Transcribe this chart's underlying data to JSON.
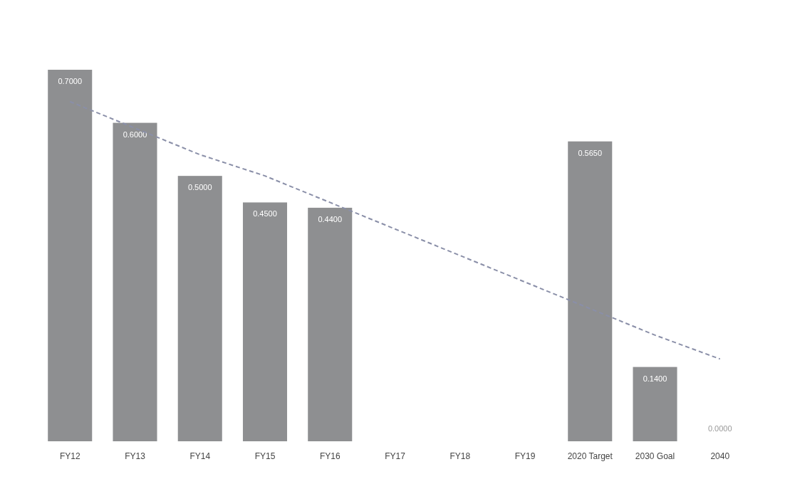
{
  "chart_data": {
    "type": "bar",
    "categories": [
      "FY12",
      "FY13",
      "FY14",
      "FY15",
      "FY16",
      "FY17",
      "FY18",
      "FY19",
      "2020 Target",
      "2030 Goal",
      "2040"
    ],
    "series": [
      {
        "color": "#8e8f91",
        "values": [
          0.7,
          0.6,
          0.5,
          0.45,
          0.44,
          null,
          null,
          null,
          0.565,
          0.14,
          0
        ],
        "value_labels": [
          "0.7000",
          "0.6000",
          "0.5000",
          "0.4500",
          "0.4400",
          null,
          null,
          null,
          "0.5650",
          "0.1400",
          "0.0000"
        ]
      },
      {
        "type": "line",
        "color": "#8a8fa8",
        "line_style": "dashed",
        "values": [
          0.64,
          0.59,
          0.54,
          0.5,
          0.45,
          0.4,
          0.35,
          0.3,
          0.25,
          0.2,
          0.155
        ]
      }
    ]
  }
}
